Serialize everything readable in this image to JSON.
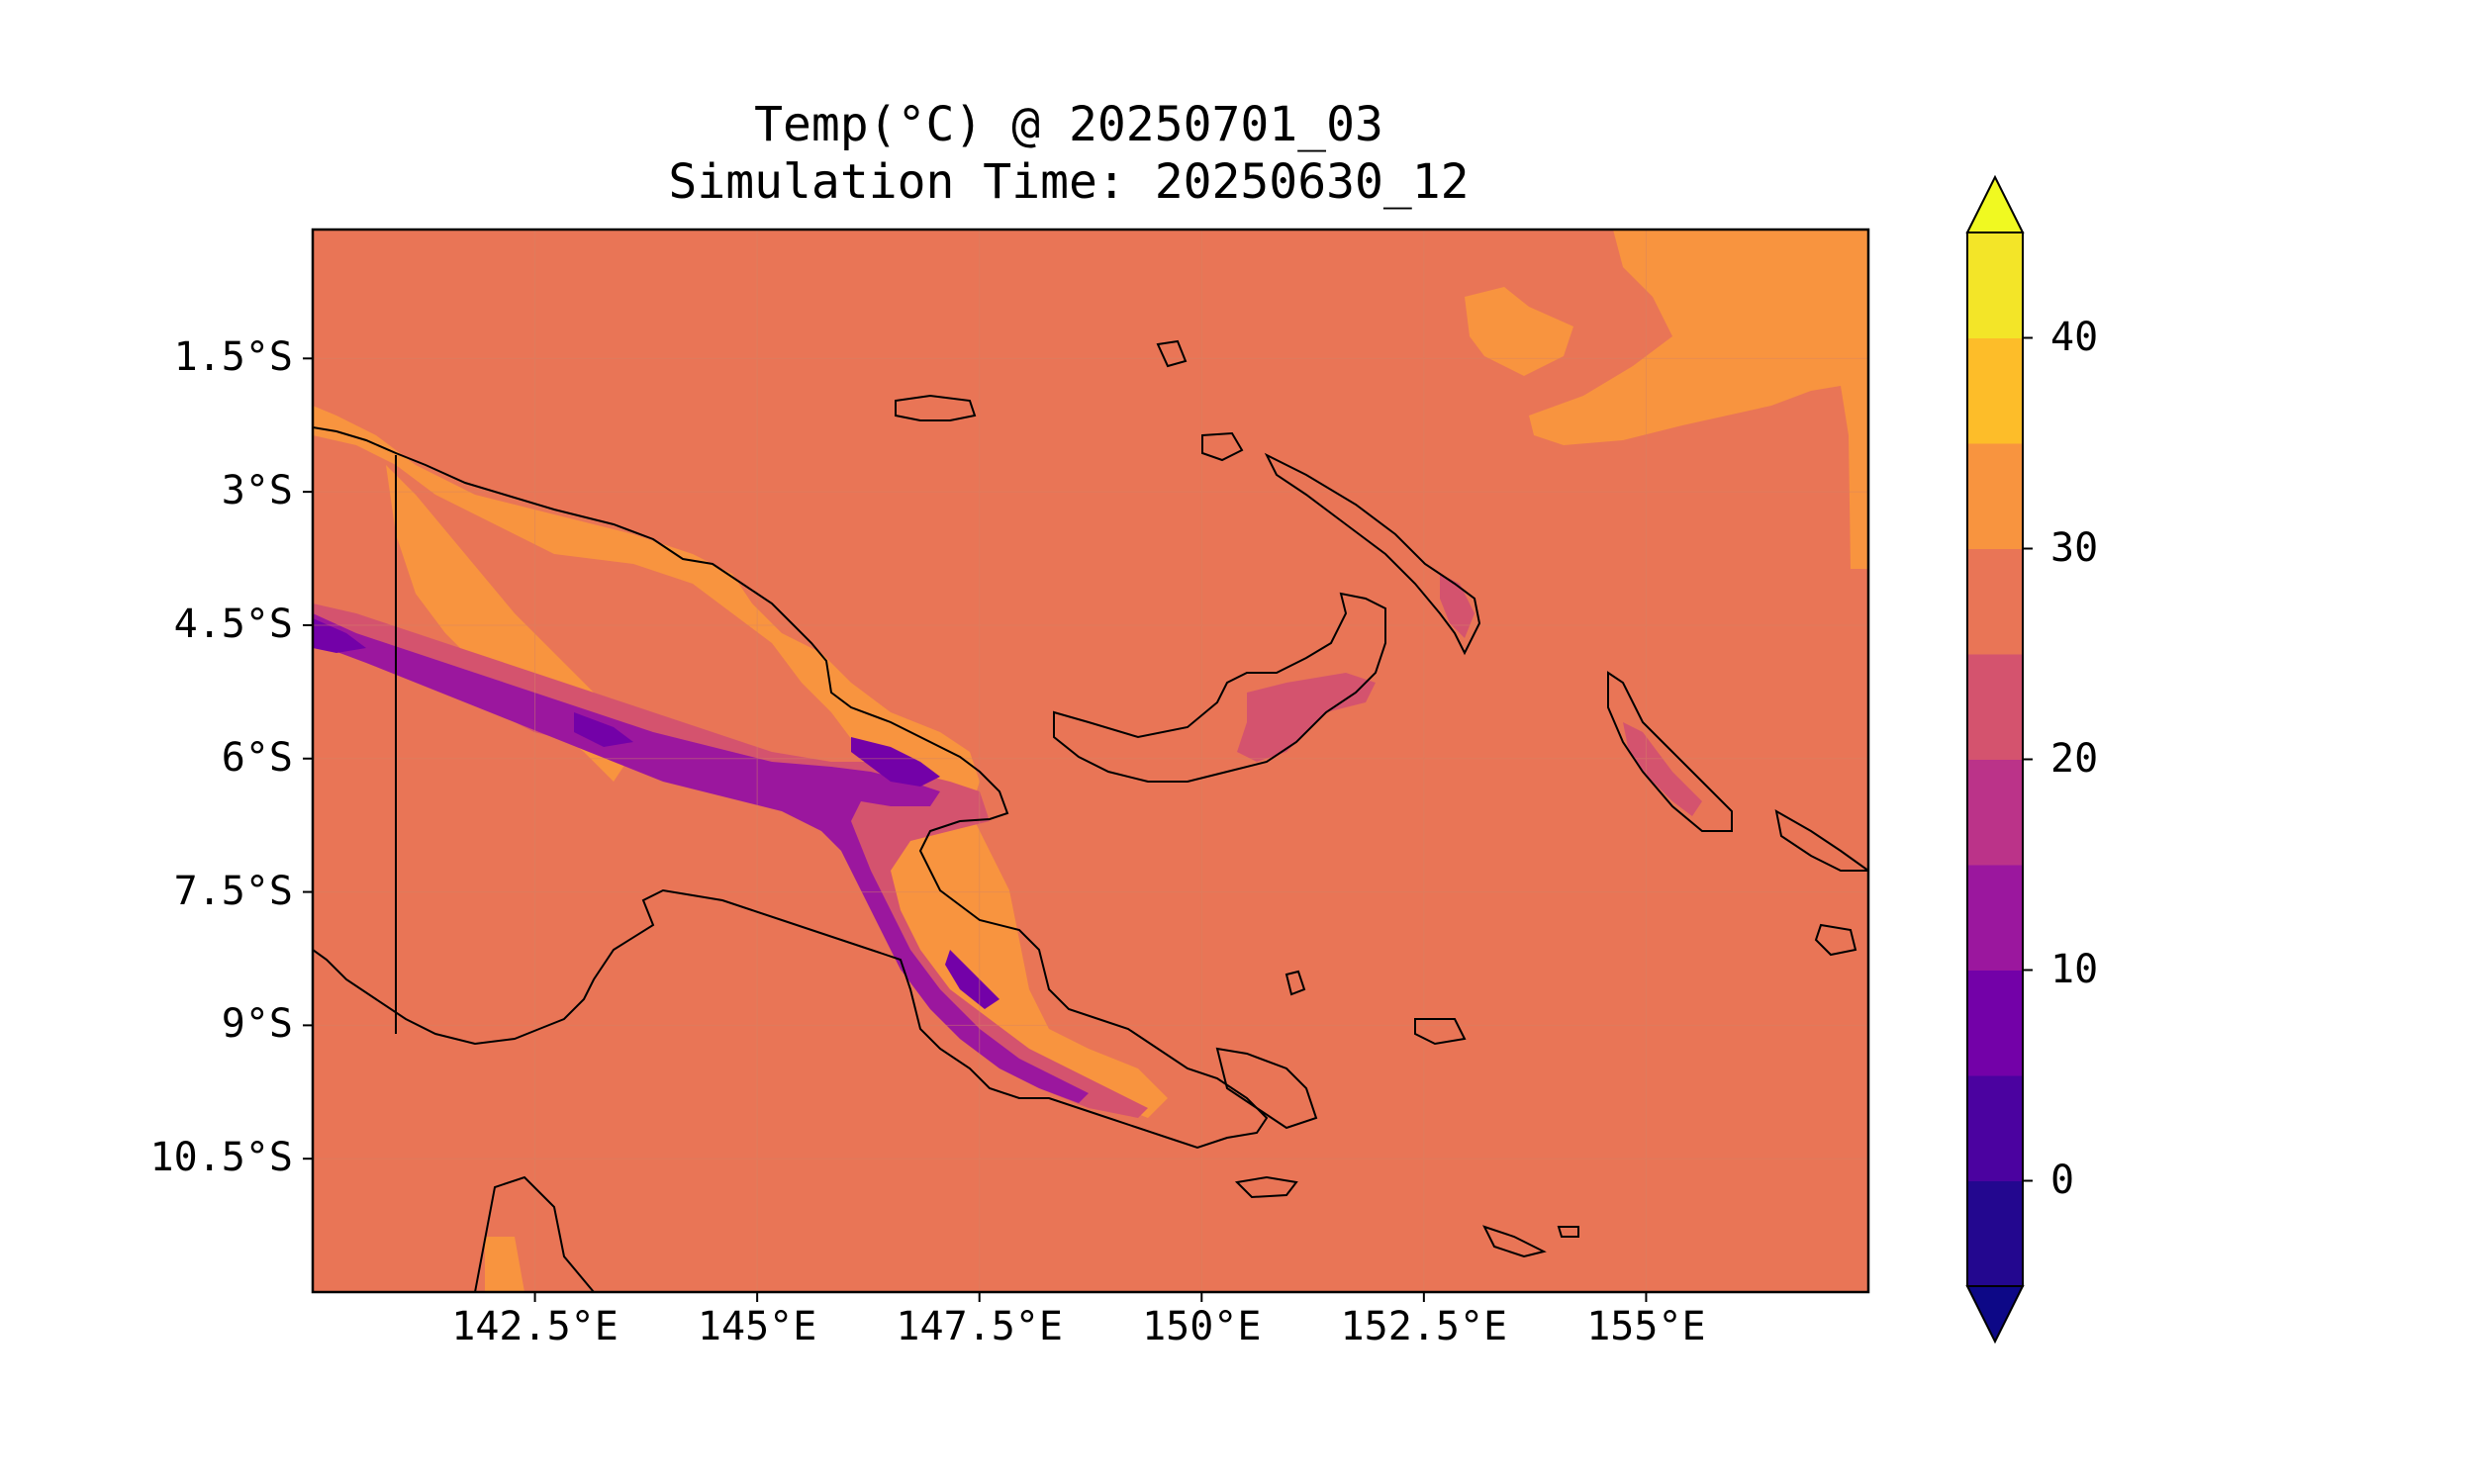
{
  "title": {
    "line1": "Temp(°C) @ 20250701_03",
    "line2": "Simulation Time: 20250630_12"
  },
  "map": {
    "lon_range": [
      140.0,
      157.5
    ],
    "lat_range": [
      -12.0,
      -0.05
    ],
    "background_value_label": "25–30",
    "coastline_color": "#000000",
    "border_meridian_lon": 141.0
  },
  "axes": {
    "lat_ticks": [
      "1.5°S",
      "3°S",
      "4.5°S",
      "6°S",
      "7.5°S",
      "9°S",
      "10.5°S"
    ],
    "lon_ticks": [
      "142.5°E",
      "145°E",
      "147.5°E",
      "150°E",
      "152.5°E",
      "155°E"
    ],
    "grid": true
  },
  "colorbar": {
    "tick_labels": [
      "40",
      "30",
      "20",
      "10",
      "0"
    ],
    "levels": [
      -5,
      0,
      5,
      10,
      15,
      20,
      25,
      30,
      35,
      40,
      45
    ],
    "colors": [
      "#23078f",
      "#4b02a0",
      "#7301a8",
      "#9b179e",
      "#bb3389",
      "#d4536e",
      "#e97556",
      "#f8943f",
      "#fdbd29",
      "#f3e528"
    ],
    "extend_low_color": "#0d0887",
    "extend_high_color": "#f0f921"
  },
  "chart_data": {
    "type": "heatmap",
    "title": "Temp(°C) @ 20250701_03",
    "subtitle": "Simulation Time: 20250630_12",
    "xlabel": "",
    "ylabel": "",
    "x_ticks": [
      "142.5°E",
      "145°E",
      "147.5°E",
      "150°E",
      "152.5°E",
      "155°E"
    ],
    "y_ticks": [
      "1.5°S",
      "3°S",
      "4.5°S",
      "6°S",
      "7.5°S",
      "9°S",
      "10.5°S"
    ],
    "colorbar_ticks": [
      0,
      10,
      20,
      30,
      40
    ],
    "dominant_value_range": [
      25,
      30
    ],
    "coldest_value_range": [
      0,
      5
    ],
    "legend_placement": "right"
  }
}
